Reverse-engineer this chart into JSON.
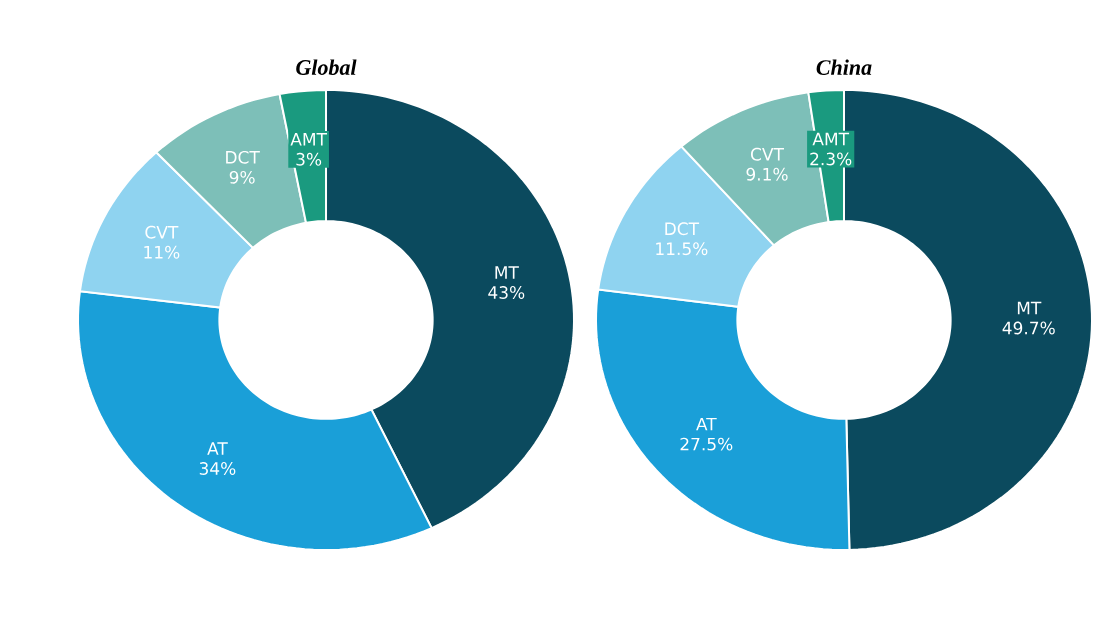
{
  "chart_data": [
    {
      "type": "donut",
      "title": "Global",
      "categories": [
        "MT",
        "AT",
        "CVT",
        "DCT",
        "AMT"
      ],
      "values": [
        43,
        34,
        11,
        9,
        3
      ],
      "value_labels": [
        "43%",
        "34%",
        "11%",
        "9%",
        "3%"
      ],
      "colors": [
        "#0b4a5e",
        "#1a9fd8",
        "#8fd3f0",
        "#7dbfb8",
        "#1a9a7f"
      ]
    },
    {
      "type": "donut",
      "title": "China",
      "categories": [
        "MT",
        "AT",
        "DCT",
        "CVT",
        "AMT"
      ],
      "values": [
        49.7,
        27.5,
        11.5,
        9.1,
        2.3
      ],
      "value_labels": [
        "49.7%",
        "27.5%",
        "11.5%",
        "9.1%",
        "2.3%"
      ],
      "colors": [
        "#0b4a5e",
        "#1a9fd8",
        "#8fd3f0",
        "#7dbfb8",
        "#1a9a7f"
      ]
    }
  ]
}
